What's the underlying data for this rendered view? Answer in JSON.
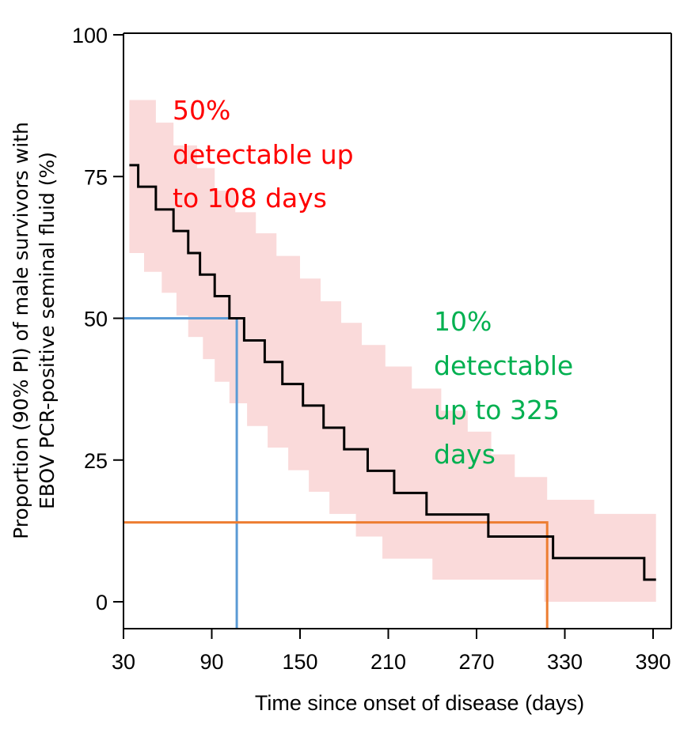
{
  "chart_data": {
    "type": "line",
    "title": "",
    "xlabel": "Time since onset of disease (days)",
    "ylabel_lines": [
      "Proportion (90% PI) of male survivors with",
      "EBOV PCR-positive seminal fluid (%)"
    ],
    "xlim": [
      30,
      392
    ],
    "ylim": [
      -5,
      100
    ],
    "x_ticks": [
      30,
      90,
      150,
      210,
      270,
      330,
      390
    ],
    "y_ticks": [
      0,
      25,
      50,
      75,
      100
    ],
    "grid": false,
    "series": [
      {
        "steps": [
          [
            34,
            77
          ],
          [
            40,
            73.2
          ],
          [
            52,
            69.2
          ],
          [
            64,
            65.4
          ],
          [
            74,
            61.5
          ],
          [
            82,
            57.7
          ],
          [
            92,
            53.9
          ],
          [
            102,
            50
          ],
          [
            112,
            46.1
          ],
          [
            126,
            42.3
          ],
          [
            138,
            38.4
          ],
          [
            152,
            34.6
          ],
          [
            166,
            30.7
          ],
          [
            180,
            26.9
          ],
          [
            196,
            23.1
          ],
          [
            214,
            19.2
          ],
          [
            236,
            15.4
          ],
          [
            278,
            11.5
          ],
          [
            322,
            7.7
          ],
          [
            384,
            3.9
          ],
          [
            392,
            3.9
          ]
        ],
        "color": "#000000"
      }
    ],
    "interval_band": {
      "color": "#fadada",
      "upper": [
        [
          34,
          88.5
        ],
        [
          52,
          84.5
        ],
        [
          64,
          80.5
        ],
        [
          80,
          76.5
        ],
        [
          92,
          72.5
        ],
        [
          106,
          68.7
        ],
        [
          120,
          65
        ],
        [
          134,
          61
        ],
        [
          150,
          57
        ],
        [
          164,
          53
        ],
        [
          178,
          49.2
        ],
        [
          192,
          45.3
        ],
        [
          208,
          41.5
        ],
        [
          226,
          37.6
        ],
        [
          246,
          33.7
        ],
        [
          264,
          30
        ],
        [
          280,
          26
        ],
        [
          296,
          22
        ],
        [
          318,
          18
        ],
        [
          350,
          15.5
        ],
        [
          392,
          15.5
        ]
      ],
      "lower": [
        [
          34,
          61.5
        ],
        [
          44,
          58.2
        ],
        [
          56,
          54.5
        ],
        [
          66,
          50.5
        ],
        [
          74,
          46.7
        ],
        [
          84,
          42.8
        ],
        [
          92,
          38.8
        ],
        [
          102,
          35
        ],
        [
          114,
          31
        ],
        [
          128,
          27.2
        ],
        [
          142,
          23.2
        ],
        [
          156,
          19.4
        ],
        [
          170,
          15.5
        ],
        [
          188,
          11.5
        ],
        [
          206,
          7.6
        ],
        [
          240,
          3.9
        ],
        [
          282,
          3.9
        ],
        [
          316,
          0
        ],
        [
          392,
          0
        ]
      ]
    },
    "reference_lines": [
      {
        "color": "#5b9bd5",
        "x": 107,
        "y": 50
      },
      {
        "color": "#ed7d31",
        "x": 318,
        "y": 14
      }
    ],
    "annotations": [
      {
        "lines": [
          "50%",
          "detectable up",
          "to 108 days"
        ],
        "color": "#ff0000"
      },
      {
        "lines": [
          "10%",
          "detectable",
          "up to 325",
          "days"
        ],
        "color": "#00b050"
      }
    ]
  }
}
